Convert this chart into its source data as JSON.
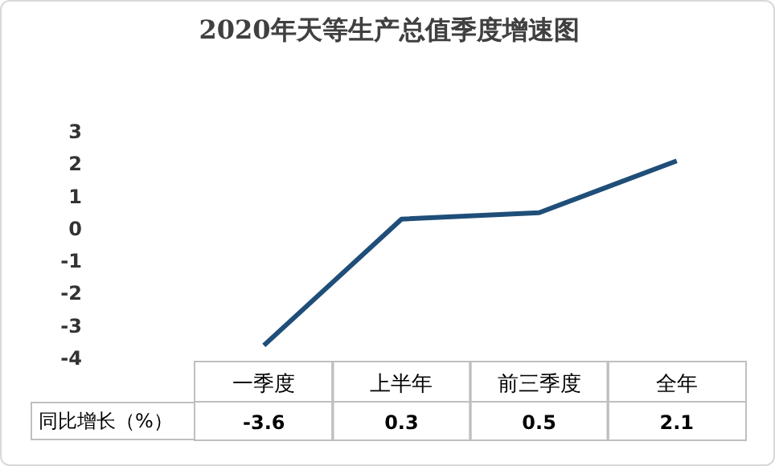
{
  "chart_data": {
    "type": "line",
    "title": "2020年天等生产总值季度增速图",
    "categories": [
      "一季度",
      "上半年",
      "前三季度",
      "全年"
    ],
    "series": [
      {
        "name": "同比增长（%）",
        "color": "#1f4e79",
        "values": [
          -3.6,
          0.3,
          0.5,
          2.1
        ]
      }
    ],
    "ylim": [
      -4,
      3
    ],
    "yticks": [
      -4,
      -3,
      -2,
      -1,
      0,
      1,
      2,
      3
    ],
    "grid": false,
    "marker": "none",
    "line_style": "solid",
    "data_labels": true
  }
}
